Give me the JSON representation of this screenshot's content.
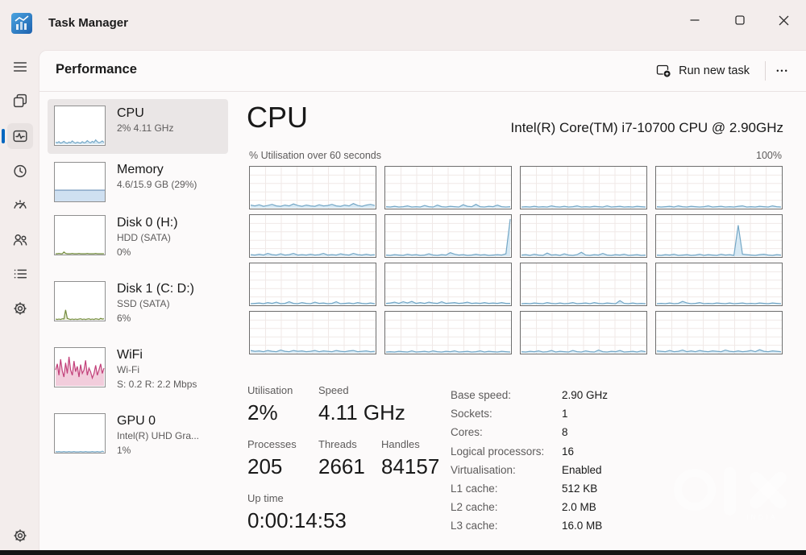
{
  "window": {
    "title": "Task Manager"
  },
  "titlebar_controls": {
    "minimize": "minimize",
    "maximize": "maximize",
    "close": "close"
  },
  "rail": {
    "items": [
      {
        "id": "menu",
        "icon": "menu",
        "selected": false
      },
      {
        "id": "processes",
        "icon": "processes",
        "selected": false
      },
      {
        "id": "performance",
        "icon": "performance",
        "selected": true
      },
      {
        "id": "app-history",
        "icon": "history",
        "selected": false
      },
      {
        "id": "startup-apps",
        "icon": "startup",
        "selected": false
      },
      {
        "id": "users",
        "icon": "users",
        "selected": false
      },
      {
        "id": "details",
        "icon": "details",
        "selected": false
      },
      {
        "id": "services",
        "icon": "services",
        "selected": false
      },
      {
        "id": "settings",
        "icon": "gear",
        "selected": false
      }
    ]
  },
  "header": {
    "title": "Performance",
    "run_new_task": "Run new task",
    "more_label": "•••"
  },
  "performance_list": {
    "items": [
      {
        "id": "cpu",
        "title": "CPU",
        "lines": [
          "2% 4.11 GHz"
        ],
        "selected": true,
        "thumb": {
          "kind": "spark",
          "values": [
            6,
            4,
            7,
            3,
            5,
            8,
            4,
            3,
            6,
            4,
            9,
            5,
            3,
            6,
            4,
            3,
            7,
            4,
            5,
            10,
            6,
            4,
            8,
            5,
            12,
            7,
            4,
            6,
            9,
            5
          ],
          "line": "#74a7c6",
          "fill": "#d7e9f4"
        }
      },
      {
        "id": "memory",
        "title": "Memory",
        "lines": [
          "4.6/15.9 GB (29%)"
        ],
        "selected": false,
        "thumb": {
          "kind": "memory",
          "percent": 29,
          "fill": "#cfe0f1",
          "line": "#89a7c7"
        }
      },
      {
        "id": "disk0",
        "title": "Disk 0 (H:)",
        "lines": [
          "HDD (SATA)",
          "0%"
        ],
        "selected": false,
        "thumb": {
          "kind": "spark",
          "values": [
            0,
            0,
            1,
            0,
            0,
            5,
            1,
            0,
            0,
            0,
            1,
            0,
            0,
            0,
            1,
            0,
            0,
            0,
            0,
            1,
            0,
            0,
            0,
            0,
            1,
            0,
            0,
            0,
            0,
            0
          ],
          "line": "#728a3c",
          "fill": "#e6ead2"
        }
      },
      {
        "id": "disk1",
        "title": "Disk 1 (C: D:)",
        "lines": [
          "SSD (SATA)",
          "6%"
        ],
        "selected": false,
        "thumb": {
          "kind": "spark",
          "values": [
            2,
            1,
            2,
            1,
            3,
            2,
            28,
            4,
            2,
            1,
            2,
            1,
            2,
            1,
            2,
            3,
            1,
            2,
            1,
            2,
            3,
            1,
            2,
            1,
            3,
            2,
            1,
            4,
            2,
            3
          ],
          "line": "#728a3c",
          "fill": "#e6ead2"
        }
      },
      {
        "id": "wifi",
        "title": "WiFi",
        "lines": [
          "Wi-Fi",
          "S: 0.2 R: 2.2 Mbps"
        ],
        "selected": false,
        "thumb": {
          "kind": "spark",
          "values": [
            45,
            62,
            30,
            75,
            42,
            25,
            65,
            35,
            82,
            45,
            30,
            70,
            40,
            55,
            25,
            60,
            35,
            45,
            72,
            30,
            50,
            40,
            22,
            35,
            58,
            30,
            45,
            62,
            35,
            50
          ],
          "line": "#c2407a",
          "fill": "#f2cddc"
        }
      },
      {
        "id": "gpu0",
        "title": "GPU 0",
        "lines": [
          "Intel(R) UHD Gra...",
          "1%"
        ],
        "selected": false,
        "thumb": {
          "kind": "spark",
          "values": [
            1,
            0,
            1,
            0,
            0,
            1,
            0,
            0,
            1,
            0,
            0,
            1,
            0,
            0,
            0,
            1,
            0,
            0,
            1,
            0,
            0,
            0,
            1,
            0,
            0,
            1,
            0,
            0,
            2,
            0
          ],
          "line": "#74a7c6",
          "fill": "#d7e9f4"
        }
      }
    ]
  },
  "main": {
    "title": "CPU",
    "subtitle": "Intel(R) Core(TM) i7-10700 CPU @ 2.90GHz",
    "graph_label": "% Utilisation over 60 seconds",
    "graph_max_label": "100%",
    "stats": {
      "utilisation": {
        "label": "Utilisation",
        "value": "2%"
      },
      "speed": {
        "label": "Speed",
        "value": "4.11 GHz"
      },
      "processes": {
        "label": "Processes",
        "value": "205"
      },
      "threads": {
        "label": "Threads",
        "value": "2661"
      },
      "handles": {
        "label": "Handles",
        "value": "84157"
      },
      "uptime": {
        "label": "Up time",
        "value": "0:00:14:53"
      }
    },
    "details": [
      {
        "label": "Base speed:",
        "value": "2.90 GHz"
      },
      {
        "label": "Sockets:",
        "value": "1"
      },
      {
        "label": "Cores:",
        "value": "8"
      },
      {
        "label": "Logical processors:",
        "value": "16"
      },
      {
        "label": "Virtualisation:",
        "value": "Enabled"
      },
      {
        "label": "L1 cache:",
        "value": "512 KB"
      },
      {
        "label": "L2 cache:",
        "value": "2.0 MB"
      },
      {
        "label": "L3 cache:",
        "value": "16.0 MB"
      }
    ]
  },
  "watermark": {
    "region_label": "INDIA"
  },
  "colors": {
    "accent": "#0067c0",
    "cpu_line": "#74a7c6",
    "cpu_fill": "#d7e9f4",
    "graph_border": "#6e6e6e",
    "grid_line": "#f0e9e7"
  },
  "chart_data": {
    "type": "line",
    "title": "% Utilisation over 60 seconds",
    "ylim": [
      0,
      100
    ],
    "x_span_seconds": 60,
    "y_max_label": "100%",
    "grid": true,
    "cores": [
      [
        7,
        5,
        8,
        4,
        6,
        9,
        5,
        4,
        7,
        5,
        10,
        6,
        4,
        7,
        5,
        4,
        8,
        5,
        6,
        9,
        5,
        4,
        7,
        5,
        11,
        6,
        4,
        7,
        9,
        6
      ],
      [
        3,
        2,
        4,
        2,
        3,
        5,
        2,
        3,
        2,
        6,
        3,
        2,
        7,
        3,
        2,
        4,
        3,
        2,
        8,
        4,
        3,
        9,
        3,
        2,
        4,
        3,
        7,
        3,
        2,
        3
      ],
      [
        2,
        3,
        2,
        4,
        2,
        3,
        2,
        5,
        3,
        2,
        4,
        2,
        3,
        5,
        2,
        3,
        2,
        4,
        3,
        2,
        5,
        2,
        3,
        4,
        2,
        3,
        2,
        4,
        3,
        2
      ],
      [
        3,
        2,
        3,
        4,
        2,
        5,
        3,
        2,
        4,
        3,
        2,
        3,
        5,
        2,
        3,
        4,
        2,
        3,
        2,
        4,
        5,
        2,
        3,
        2,
        4,
        3,
        2,
        5,
        3,
        2
      ],
      [
        4,
        3,
        5,
        3,
        7,
        4,
        3,
        6,
        3,
        4,
        7,
        3,
        4,
        3,
        5,
        3,
        4,
        7,
        3,
        4,
        3,
        6,
        4,
        3,
        7,
        4,
        3,
        5,
        3,
        4
      ],
      [
        3,
        2,
        4,
        3,
        2,
        5,
        3,
        4,
        2,
        3,
        6,
        3,
        2,
        4,
        3,
        9,
        5,
        3,
        4,
        2,
        3,
        5,
        3,
        4,
        2,
        3,
        4,
        3,
        6,
        96
      ],
      [
        3,
        4,
        2,
        5,
        3,
        2,
        8,
        3,
        4,
        2,
        6,
        3,
        2,
        4,
        10,
        3,
        2,
        4,
        3,
        7,
        3,
        2,
        4,
        3,
        5,
        2,
        3,
        4,
        2,
        3
      ],
      [
        3,
        2,
        4,
        3,
        5,
        2,
        3,
        4,
        2,
        3,
        5,
        2,
        4,
        3,
        2,
        5,
        3,
        4,
        2,
        80,
        5,
        4,
        3,
        2,
        4,
        5,
        3,
        2,
        4,
        3
      ],
      [
        2,
        3,
        4,
        2,
        5,
        3,
        6,
        2,
        3,
        7,
        3,
        2,
        5,
        3,
        2,
        6,
        3,
        4,
        2,
        3,
        7,
        2,
        3,
        4,
        2,
        5,
        3,
        2,
        4,
        2
      ],
      [
        3,
        4,
        6,
        3,
        7,
        4,
        8,
        3,
        5,
        3,
        6,
        4,
        3,
        7,
        3,
        4,
        5,
        3,
        4,
        6,
        3,
        4,
        3,
        5,
        3,
        4,
        3,
        5,
        3,
        3
      ],
      [
        2,
        3,
        2,
        4,
        3,
        2,
        5,
        3,
        2,
        4,
        2,
        3,
        5,
        2,
        3,
        4,
        2,
        5,
        3,
        2,
        4,
        3,
        2,
        10,
        3,
        2,
        4,
        2,
        3,
        2
      ],
      [
        2,
        3,
        2,
        4,
        2,
        3,
        8,
        4,
        2,
        3,
        5,
        2,
        3,
        2,
        4,
        3,
        2,
        4,
        2,
        3,
        4,
        2,
        3,
        2,
        4,
        3,
        2,
        4,
        3,
        2
      ],
      [
        6,
        4,
        5,
        3,
        6,
        4,
        3,
        7,
        4,
        3,
        6,
        4,
        5,
        3,
        4,
        6,
        3,
        5,
        4,
        3,
        6,
        4,
        3,
        5,
        6,
        3,
        4,
        5,
        3,
        4
      ],
      [
        2,
        3,
        2,
        4,
        3,
        2,
        5,
        2,
        3,
        4,
        2,
        5,
        3,
        2,
        4,
        3,
        5,
        2,
        3,
        4,
        2,
        3,
        5,
        2,
        4,
        3,
        2,
        4,
        3,
        2
      ],
      [
        3,
        2,
        4,
        3,
        5,
        2,
        3,
        6,
        2,
        4,
        3,
        2,
        6,
        3,
        2,
        5,
        3,
        2,
        7,
        3,
        2,
        4,
        3,
        6,
        2,
        3,
        4,
        2,
        5,
        3
      ],
      [
        5,
        4,
        3,
        6,
        3,
        4,
        7,
        3,
        5,
        3,
        6,
        4,
        3,
        5,
        4,
        3,
        7,
        4,
        3,
        5,
        3,
        4,
        6,
        3,
        8,
        4,
        3,
        5,
        4,
        3
      ]
    ]
  }
}
